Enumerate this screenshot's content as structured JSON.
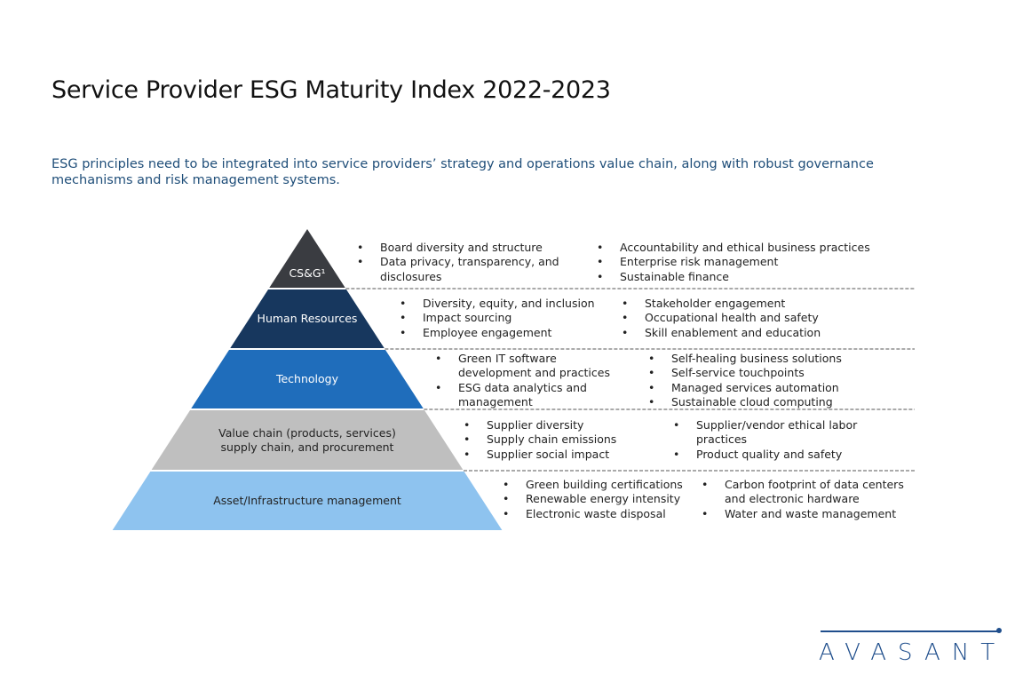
{
  "title": "Service Provider ESG Maturity Index 2022-2023",
  "subtitle": "ESG principles need to be integrated into service providers’ strategy and operations value chain, along with robust governance mechanisms and risk management systems.",
  "tiers": [
    {
      "label": "CS&G¹",
      "color": "#3a3c41",
      "text_color": "#ffffff",
      "col1": [
        "Board diversity and structure",
        "Data privacy, transparency, and disclosures"
      ],
      "col2": [
        "Accountability and ethical business practices",
        "Enterprise risk management",
        "Sustainable finance"
      ]
    },
    {
      "label": "Human Resources",
      "color": "#17375e",
      "text_color": "#ffffff",
      "col1": [
        "Diversity, equity, and inclusion",
        "Impact sourcing",
        "Employee engagement"
      ],
      "col2": [
        "Stakeholder engagement",
        "Occupational health and safety",
        "Skill enablement and education"
      ]
    },
    {
      "label": "Technology",
      "color": "#1f6dbb",
      "text_color": "#ffffff",
      "col1": [
        "Green IT software development and practices",
        "ESG data analytics and management"
      ],
      "col2": [
        "Self-healing business solutions",
        "Self-service touchpoints",
        "Managed services automation",
        "Sustainable cloud computing"
      ]
    },
    {
      "label": "Value chain (products, services) supply chain, and procurement",
      "color": "#bfbfbf",
      "text_color": "#222222",
      "col1": [
        "Supplier diversity",
        "Supply chain emissions",
        "Supplier social impact"
      ],
      "col2": [
        "Supplier/vendor ethical labor practices",
        "Product quality and safety"
      ]
    },
    {
      "label": "Asset/Infrastructure management",
      "color": "#8ec3ef",
      "text_color": "#222222",
      "col1": [
        "Green building certifications",
        "Renewable energy intensity",
        "Electronic waste disposal"
      ],
      "col2": [
        "Carbon footprint of data centers and electronic hardware",
        "Water and waste management"
      ]
    }
  ],
  "logo": "AVASANT"
}
